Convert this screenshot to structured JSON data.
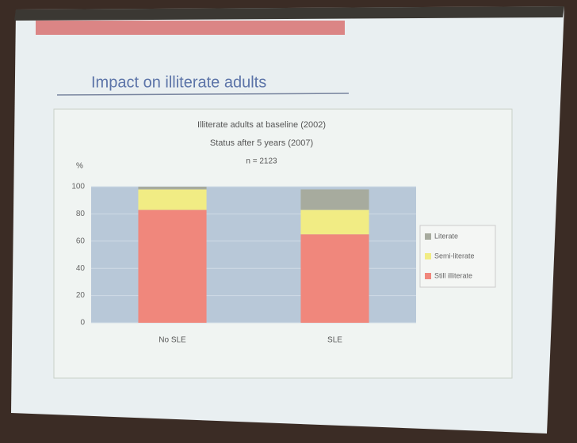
{
  "slide_title": "Impact on illiterate adults",
  "chart_data": {
    "type": "bar",
    "stacked": true,
    "title": "Illiterate adults at baseline (2002)",
    "subtitle": "Status after 5 years (2007)",
    "note": "n = 2123",
    "y_label": "%",
    "categories": [
      "No SLE",
      "SLE"
    ],
    "series": [
      {
        "name": "Still illiterate",
        "color": "#f0877c",
        "values": [
          83,
          65
        ]
      },
      {
        "name": "Semi-literate",
        "color": "#f1ec84",
        "values": [
          15,
          18
        ]
      },
      {
        "name": "Literate",
        "color": "#a7ab9e",
        "values": [
          2,
          15
        ]
      }
    ],
    "ylim": [
      0,
      100
    ],
    "yticks": [
      0,
      20,
      40,
      60,
      80,
      100
    ],
    "grid": true,
    "plot_color": "#b8c8d8",
    "legend": "right"
  }
}
